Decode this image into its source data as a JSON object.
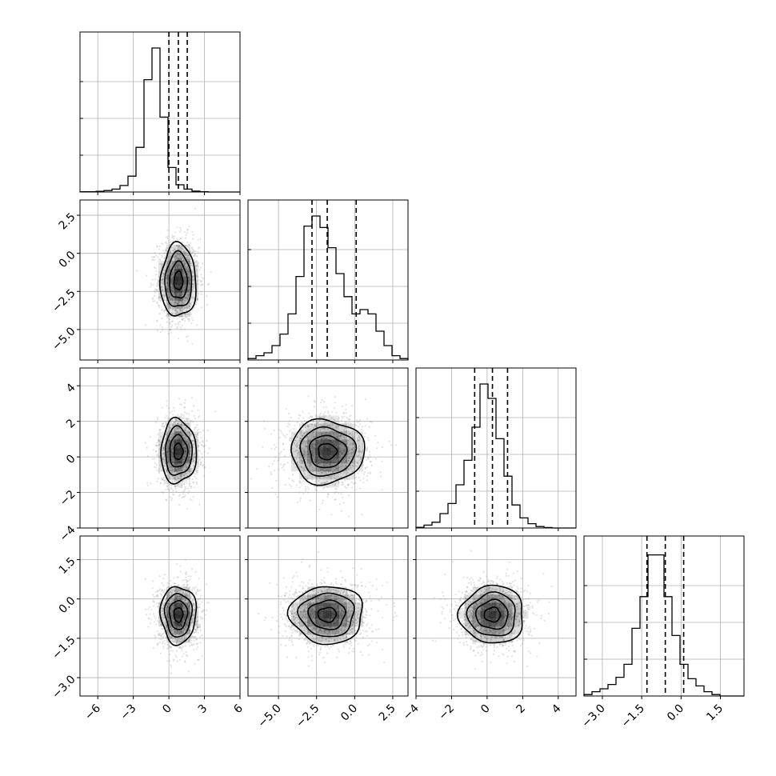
{
  "chart_data": {
    "type": "corner",
    "grid": true,
    "parameters": [
      {
        "index": 0,
        "center": 0.8,
        "sigma": 0.75,
        "range": [
          -7.5,
          6.0
        ],
        "ticks": [
          -6,
          -3,
          0,
          3,
          6
        ],
        "tick_labels": [
          "−6",
          "−3",
          "0",
          "3",
          "6"
        ],
        "quantiles": [
          0.0,
          0.8,
          1.55
        ],
        "histogram": [
          0.002,
          0.002,
          0.005,
          0.01,
          0.02,
          0.045,
          0.11,
          0.31,
          0.78,
          1.0,
          0.52,
          0.17,
          0.05,
          0.02,
          0.006,
          0.002,
          0.0,
          0.0,
          0.0,
          0.0
        ]
      },
      {
        "index": 1,
        "center": -1.8,
        "sigma": 1.2,
        "range": [
          -7.0,
          3.5
        ],
        "ticks": [
          -5.0,
          -2.5,
          0.0,
          2.5
        ],
        "tick_labels": [
          "−5.0",
          "−2.5",
          "0.0",
          "2.5"
        ],
        "quantiles": [
          -2.8,
          -1.8,
          0.1
        ],
        "histogram": [
          0.01,
          0.03,
          0.05,
          0.1,
          0.18,
          0.32,
          0.58,
          0.93,
          1.0,
          0.92,
          0.78,
          0.6,
          0.44,
          0.32,
          0.35,
          0.32,
          0.2,
          0.1,
          0.03,
          0.01
        ]
      },
      {
        "index": 2,
        "center": 0.3,
        "sigma": 0.9,
        "range": [
          -4.0,
          5.0
        ],
        "ticks": [
          -4,
          -2,
          0,
          2,
          4
        ],
        "tick_labels": [
          "−4",
          "−2",
          "0",
          "2",
          "4"
        ],
        "quantiles": [
          -0.7,
          0.3,
          1.15
        ],
        "histogram": [
          0.005,
          0.02,
          0.04,
          0.1,
          0.17,
          0.3,
          0.47,
          0.7,
          1.0,
          0.9,
          0.62,
          0.36,
          0.16,
          0.07,
          0.03,
          0.01,
          0.003,
          0.0,
          0.0,
          0.0
        ]
      },
      {
        "index": 3,
        "center": -0.6,
        "sigma": 0.55,
        "range": [
          -3.7,
          2.4
        ],
        "ticks": [
          -3.0,
          -1.5,
          0.0,
          1.5
        ],
        "tick_labels": [
          "−3.0",
          "−1.5",
          "0.0",
          "1.5"
        ],
        "quantiles": [
          -1.3,
          -0.6,
          0.1
        ],
        "histogram": [
          0.01,
          0.03,
          0.05,
          0.08,
          0.13,
          0.22,
          0.47,
          0.69,
          0.98,
          0.98,
          0.69,
          0.42,
          0.22,
          0.12,
          0.07,
          0.03,
          0.01,
          0.0,
          0.0,
          0.0
        ]
      }
    ],
    "pairs": [
      {
        "x": 0,
        "y": 1,
        "correlation": 0.0
      },
      {
        "x": 0,
        "y": 2,
        "correlation": 0.0
      },
      {
        "x": 1,
        "y": 2,
        "correlation": 0.0
      },
      {
        "x": 0,
        "y": 3,
        "correlation": 0.0
      },
      {
        "x": 1,
        "y": 3,
        "correlation": 0.0
      },
      {
        "x": 2,
        "y": 3,
        "correlation": 0.0
      }
    ],
    "contour_levels_sigma": [
      0.5,
      1.0,
      1.5,
      2.0
    ],
    "colors": {
      "line": "#000000",
      "points": "#7f7f7f",
      "grid": "#b0b0b0",
      "density": "#000000"
    }
  }
}
